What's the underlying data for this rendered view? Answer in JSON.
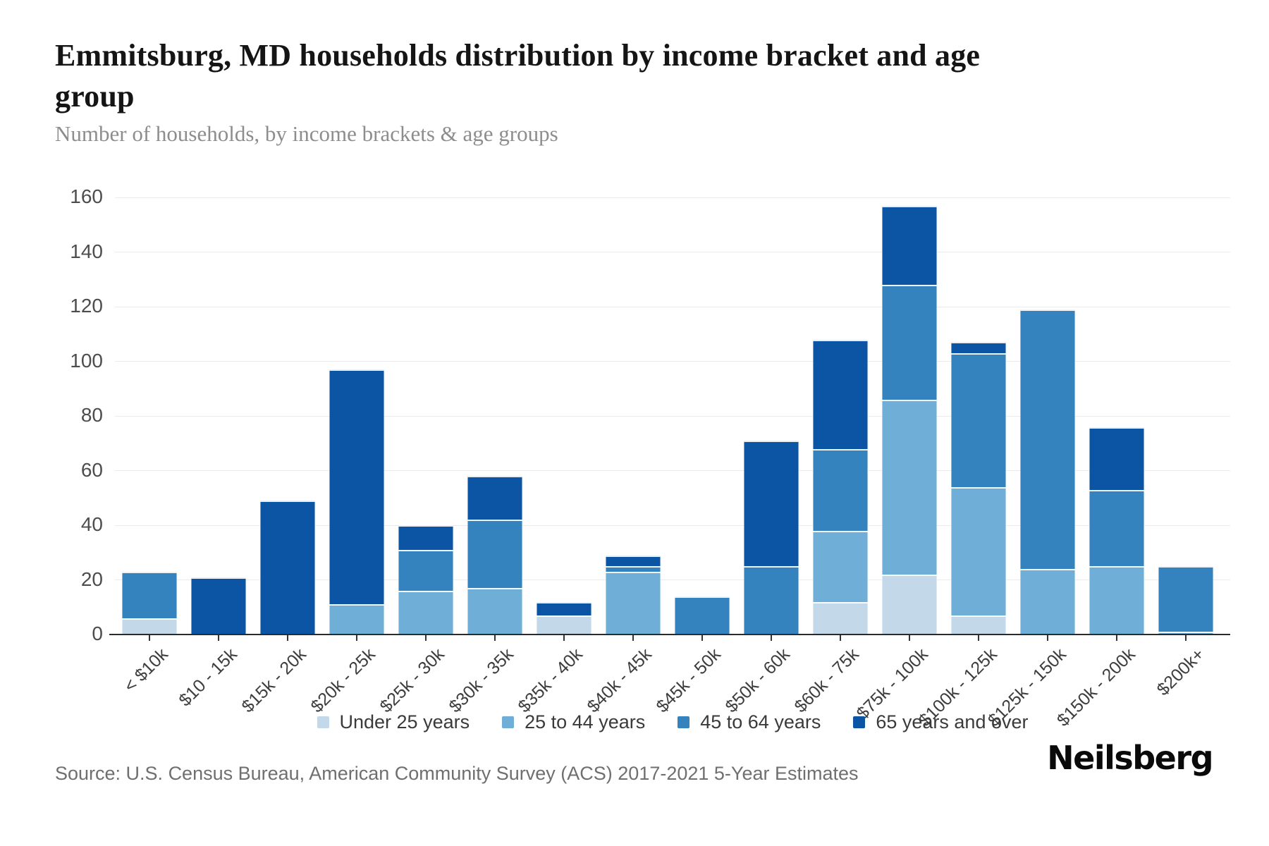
{
  "header": {
    "title": "Emmitsburg, MD households distribution by income bracket and age group",
    "subtitle": "Number of households, by income brackets & age groups"
  },
  "chart_data": {
    "type": "bar",
    "stacked": true,
    "title": "Emmitsburg, MD households distribution by income bracket and age group",
    "subtitle": "Number of households, by income brackets & age groups",
    "categories": [
      "< $10k",
      "$10 - 15k",
      "$15k - 20k",
      "$20k - 25k",
      "$25k - 30k",
      "$30k - 35k",
      "$35k - 40k",
      "$40k - 45k",
      "$45k - 50k",
      "$50k - 60k",
      "$60k - 75k",
      "$75k - 100k",
      "$100k - 125k",
      "$125k - 150k",
      "$150k - 200k",
      "$200k+"
    ],
    "series": [
      {
        "name": "Under 25 years",
        "color": "#c3d9ea",
        "values": [
          6,
          0,
          0,
          0,
          0,
          0,
          7,
          0,
          0,
          0,
          12,
          22,
          7,
          0,
          0,
          0
        ]
      },
      {
        "name": "25 to 44 years",
        "color": "#6eaed7",
        "values": [
          0,
          0,
          0,
          11,
          16,
          17,
          0,
          23,
          0,
          0,
          26,
          64,
          47,
          24,
          25,
          1
        ]
      },
      {
        "name": "45 to 64 years",
        "color": "#3483be",
        "values": [
          17,
          0,
          0,
          0,
          15,
          25,
          0,
          2,
          14,
          25,
          30,
          42,
          49,
          95,
          28,
          24
        ]
      },
      {
        "name": "65 years and over",
        "color": "#0c55a4",
        "values": [
          0,
          21,
          49,
          86,
          9,
          16,
          5,
          4,
          0,
          46,
          40,
          29,
          4,
          0,
          23,
          0
        ]
      }
    ],
    "totals": [
      23,
      21,
      49,
      97,
      40,
      58,
      12,
      29,
      14,
      71,
      108,
      157,
      107,
      119,
      76,
      25
    ],
    "xlabel": "",
    "ylabel": "",
    "ylim": [
      0,
      160
    ],
    "yticks": [
      0,
      20,
      40,
      60,
      80,
      100,
      120,
      140,
      160
    ],
    "grid": "horizontal",
    "legend_position": "bottom"
  },
  "footer": {
    "source": "Source: U.S. Census Bureau, American Community Survey (ACS) 2017-2021 5-Year Estimates",
    "logo": "Neilsberg"
  }
}
